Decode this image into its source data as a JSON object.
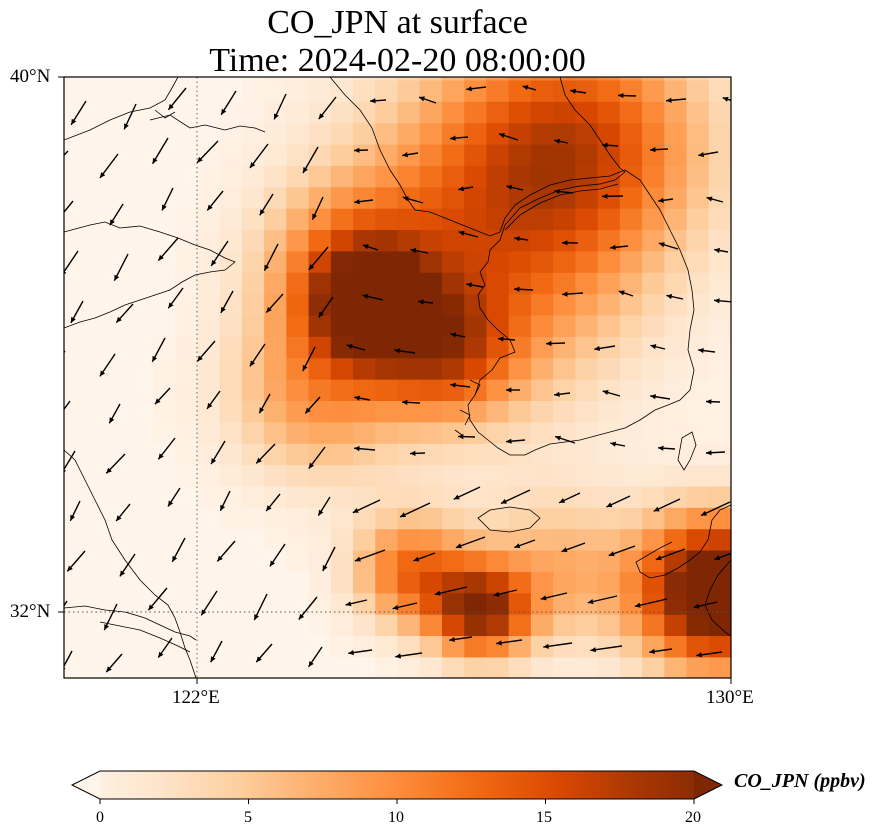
{
  "title": {
    "line1": "CO_JPN at surface",
    "line2": "Time: 2024-02-20 08:00:00"
  },
  "map": {
    "lat_labels": [
      "40°N",
      "32°N"
    ],
    "lon_labels": [
      "122°E",
      "130°E"
    ],
    "extent": {
      "lon_min": 120.4,
      "lon_max": 130,
      "lat_min": 31.0,
      "lat_max": 40
    },
    "gridlines": "dotted",
    "field": "CO_JPN",
    "plumes": [
      {
        "lon": 124.8,
        "lat": 36.55,
        "value": 14,
        "spread": 0.55
      },
      {
        "lon": 124.5,
        "lat": 37.1,
        "value": 10,
        "spread": 0.9
      },
      {
        "lon": 125.9,
        "lat": 35.9,
        "value": 10,
        "spread": 0.7
      },
      {
        "lon": 127.9,
        "lat": 39.1,
        "value": 11,
        "spread": 1.3
      },
      {
        "lon": 126.6,
        "lat": 38.2,
        "value": 8,
        "spread": 1.6
      },
      {
        "lon": 126.4,
        "lat": 32.0,
        "value": 17,
        "spread": 0.5
      },
      {
        "lon": 125.4,
        "lat": 32.6,
        "value": 12,
        "spread": 0.6
      },
      {
        "lon": 129.8,
        "lat": 32.3,
        "value": 25,
        "spread": 0.8
      },
      {
        "lon": 124.0,
        "lat": 35.2,
        "value": 8,
        "spread": 0.9
      },
      {
        "lon": 127.5,
        "lat": 32.6,
        "value": 7,
        "spread": 0.8
      },
      {
        "lon": 126.5,
        "lat": 36.5,
        "value": 5,
        "spread": 1.5
      }
    ]
  },
  "colorbar": {
    "label": "CO_JPN (ppbv)",
    "ticks": [
      "0",
      "5",
      "10",
      "15",
      "20"
    ],
    "min": 0,
    "max": 20,
    "colors": [
      "#fff5eb",
      "#fee6ce",
      "#fdd0a2",
      "#fdae6b",
      "#fd8d3c",
      "#f16913",
      "#d94801",
      "#a63603",
      "#7f2704"
    ],
    "extend": "both"
  }
}
